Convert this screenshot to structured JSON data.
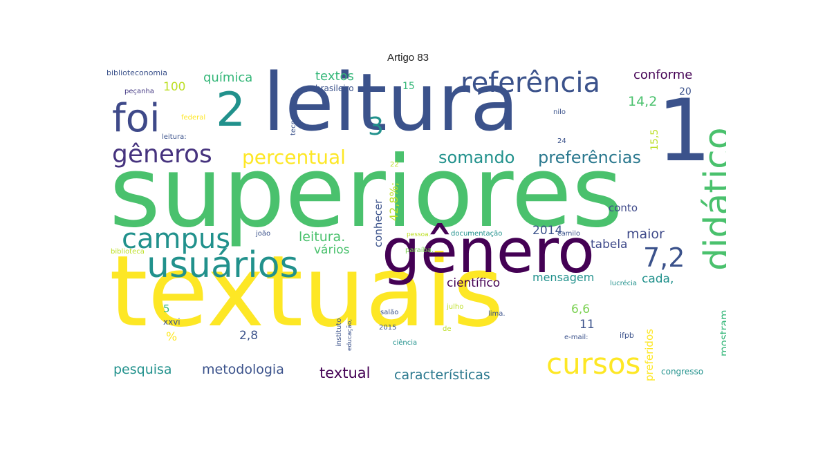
{
  "title": "Artigo 83",
  "words": [
    {
      "text": "textuais",
      "color": "#fde725"
    },
    {
      "text": "superiores",
      "color": "#4ac16d"
    },
    {
      "text": "leitura",
      "color": "#3b528b"
    },
    {
      "text": "gênero",
      "color": "#440154"
    },
    {
      "text": "1",
      "color": "#3b528b"
    },
    {
      "text": "didático",
      "color": "#4ac16d"
    },
    {
      "text": "usuários",
      "color": "#21918c"
    },
    {
      "text": "foi",
      "color": "#3e4989"
    },
    {
      "text": "2",
      "color": "#21918c"
    },
    {
      "text": "referência",
      "color": "#3b528b"
    },
    {
      "text": "cursos",
      "color": "#fde725"
    },
    {
      "text": "campus",
      "color": "#21918c"
    },
    {
      "text": "gêneros",
      "color": "#46337e"
    },
    {
      "text": "7,2",
      "color": "#3b528b"
    },
    {
      "text": "3",
      "color": "#21918c"
    },
    {
      "text": "percentual",
      "color": "#fde725"
    },
    {
      "text": "somando",
      "color": "#21918c"
    },
    {
      "text": "preferências",
      "color": "#2a788e"
    },
    {
      "text": "pesquisa",
      "color": "#21918c"
    },
    {
      "text": "metodologia",
      "color": "#3b528b"
    },
    {
      "text": "textual",
      "color": "#440154"
    },
    {
      "text": "características",
      "color": "#2a788e"
    },
    {
      "text": "química",
      "color": "#35b779"
    },
    {
      "text": "textos",
      "color": "#35b779"
    },
    {
      "text": "conforme",
      "color": "#440154"
    },
    {
      "text": "100",
      "color": "#bddf26"
    },
    {
      "text": "14,2",
      "color": "#4ac16d"
    },
    {
      "text": "leitura.",
      "color": "#4ac16d"
    },
    {
      "text": "vários",
      "color": "#4ac16d"
    },
    {
      "text": "2014.",
      "color": "#3b528b"
    },
    {
      "text": "maior",
      "color": "#3e4989"
    },
    {
      "text": "tabela",
      "color": "#3e4989"
    },
    {
      "text": "conto",
      "color": "#3e4989"
    },
    {
      "text": "científico",
      "color": "#440154"
    },
    {
      "text": "mensagem",
      "color": "#21918c"
    },
    {
      "text": "cada,",
      "color": "#21918c"
    },
    {
      "text": "6,6",
      "color": "#7ad151"
    },
    {
      "text": "11",
      "color": "#3b528b"
    },
    {
      "text": "2,8",
      "color": "#3b528b"
    },
    {
      "text": "5",
      "color": "#35b779"
    },
    {
      "text": "%",
      "color": "#fde725"
    },
    {
      "text": "biblioteconomia",
      "color": "#3b528b"
    },
    {
      "text": "brasileiro",
      "color": "#3b528b"
    },
    {
      "text": "15",
      "color": "#35b779"
    },
    {
      "text": "20",
      "color": "#3b528b"
    },
    {
      "text": "15,5",
      "color": "#bddf26"
    },
    {
      "text": "congresso",
      "color": "#21918c"
    },
    {
      "text": "peçanha",
      "color": "#443983"
    },
    {
      "text": "federal",
      "color": "#fde725"
    },
    {
      "text": "leitura:",
      "color": "#3b528b"
    },
    {
      "text": "nilo",
      "color": "#3b528b"
    },
    {
      "text": "24",
      "color": "#3b528b"
    },
    {
      "text": "22",
      "color": "#bddf26"
    },
    {
      "text": "joão",
      "color": "#3b528b"
    },
    {
      "text": "pessoa.",
      "color": "#bddf26"
    },
    {
      "text": "documentação",
      "color": "#21918c"
    },
    {
      "text": "camilo",
      "color": "#3b528b"
    },
    {
      "text": "biblioteca",
      "color": "#bddf26"
    },
    {
      "text": "paraíba,",
      "color": "#7ad151"
    },
    {
      "text": "xxvi",
      "color": "#3b528b"
    },
    {
      "text": "salão",
      "color": "#3b528b"
    },
    {
      "text": "julho",
      "color": "#bddf26"
    },
    {
      "text": "lima.",
      "color": "#3b528b"
    },
    {
      "text": "2015",
      "color": "#3b528b"
    },
    {
      "text": "ciência",
      "color": "#21918c"
    },
    {
      "text": "de",
      "color": "#bddf26"
    },
    {
      "text": "e-mail:",
      "color": "#3b528b"
    },
    {
      "text": "ifpb",
      "color": "#3b528b"
    },
    {
      "text": "lucrécia",
      "color": "#21918c"
    },
    {
      "text": "conhecer",
      "color": "#3b528b"
    },
    {
      "text": "42,8%;",
      "color": "#bddf26"
    },
    {
      "text": "preferidos",
      "color": "#fde725"
    },
    {
      "text": "mostram",
      "color": "#35b779"
    },
    {
      "text": "tecnologia",
      "color": "#3b528b"
    },
    {
      "text": "instituto",
      "color": "#3b528b"
    },
    {
      "text": "educação,",
      "color": "#3b528b"
    }
  ]
}
